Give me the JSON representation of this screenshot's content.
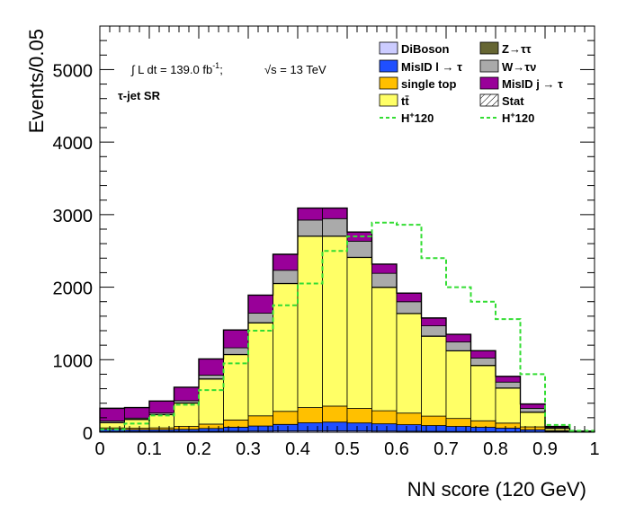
{
  "chart_data": {
    "type": "bar",
    "stacked": true,
    "histogram": true,
    "xlabel": "NN score (120 GeV)",
    "ylabel": "Events/0.05",
    "xlim": [
      0,
      1
    ],
    "ylim": [
      0,
      5600
    ],
    "x_ticks": [
      "0",
      "0.1",
      "0.2",
      "0.3",
      "0.4",
      "0.5",
      "0.6",
      "0.7",
      "0.8",
      "0.9",
      "1"
    ],
    "y_ticks": [
      "0",
      "1000",
      "2000",
      "3000",
      "4000",
      "5000"
    ],
    "bin_edges": [
      0,
      0.05,
      0.1,
      0.15,
      0.2,
      0.25,
      0.3,
      0.35,
      0.4,
      0.45,
      0.5,
      0.55,
      0.6,
      0.65,
      0.7,
      0.75,
      0.8,
      0.85,
      0.9,
      0.95,
      1.0
    ],
    "annotation": {
      "lumi": "∫ L dt = 139.0 fb",
      "lumi_sup": "-1",
      "lumi_suffix": ";",
      "energy": "√s = 13 TeV",
      "region": "τ-jet SR"
    },
    "series": [
      {
        "name": "DiBoson",
        "color": "#ccccff",
        "values": [
          10,
          10,
          10,
          10,
          12,
          14,
          16,
          18,
          20,
          20,
          18,
          16,
          14,
          12,
          10,
          8,
          6,
          4,
          2,
          1
        ]
      },
      {
        "name": "MisID l → τ",
        "color": "#1f4fff",
        "values": [
          30,
          25,
          25,
          30,
          40,
          55,
          70,
          90,
          110,
          120,
          110,
          100,
          90,
          80,
          70,
          60,
          50,
          30,
          10,
          2
        ]
      },
      {
        "name": "single top",
        "color": "#ffc000",
        "values": [
          20,
          20,
          25,
          40,
          60,
          100,
          140,
          180,
          210,
          220,
          200,
          180,
          160,
          130,
          110,
          90,
          70,
          40,
          10,
          2
        ]
      },
      {
        "name": "tt̄",
        "color": "#ffff66",
        "values": [
          70,
          120,
          180,
          320,
          620,
          900,
          1280,
          1760,
          2360,
          2340,
          2080,
          1700,
          1370,
          1100,
          930,
          760,
          480,
          200,
          30,
          3
        ]
      },
      {
        "name": "Z→ττ",
        "color": "#666633",
        "values": [
          5,
          5,
          5,
          5,
          5,
          5,
          5,
          5,
          5,
          5,
          5,
          5,
          5,
          5,
          5,
          5,
          5,
          5,
          2,
          1
        ]
      },
      {
        "name": "W→τν",
        "color": "#aaaaaa",
        "values": [
          20,
          15,
          20,
          30,
          50,
          90,
          130,
          180,
          220,
          240,
          220,
          190,
          160,
          140,
          120,
          100,
          80,
          50,
          10,
          2
        ]
      },
      {
        "name": "MisID j → τ",
        "color": "#990099",
        "values": [
          175,
          145,
          165,
          185,
          223,
          246,
          249,
          220,
          165,
          145,
          127,
          127,
          119,
          108,
          105,
          101,
          79,
          61,
          16,
          4
        ]
      }
    ],
    "stat": {
      "name": "Stat"
    },
    "signal": [
      {
        "name": "H⁺120",
        "color": "#33dd33",
        "style": "dashed",
        "values": [
          40,
          120,
          230,
          380,
          580,
          950,
          1400,
          1750,
          2050,
          2500,
          2700,
          2890,
          2860,
          2400,
          2000,
          1800,
          1560,
          800,
          100,
          20
        ]
      },
      {
        "name": "H⁺120",
        "color": "#33dd33",
        "style": "dashed"
      }
    ]
  }
}
